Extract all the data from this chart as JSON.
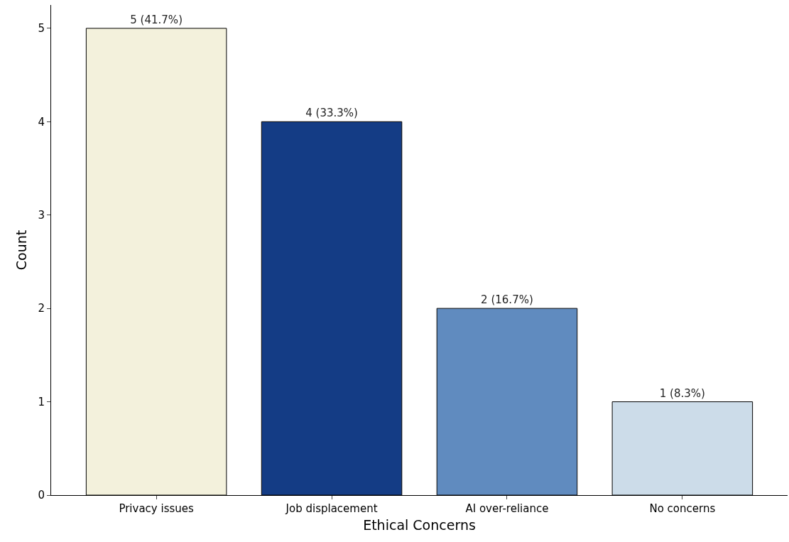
{
  "chart_data": {
    "type": "bar",
    "xlabel": "Ethical Concerns",
    "ylabel": "Count",
    "categories": [
      "Privacy issues",
      "Job displacement",
      "AI over-reliance",
      "No concerns"
    ],
    "values": [
      5,
      4,
      2,
      1
    ],
    "colors": [
      "#f3f1dc",
      "#143c85",
      "#608bbf",
      "#ccdce9"
    ],
    "value_labels": [
      "5 (41.7%)",
      "4 (33.3%)",
      "2 (16.7%)",
      "1 (8.3%)"
    ],
    "ylim": [
      0,
      5.25
    ],
    "yticks": [
      0,
      1,
      2,
      3,
      4,
      5
    ]
  }
}
